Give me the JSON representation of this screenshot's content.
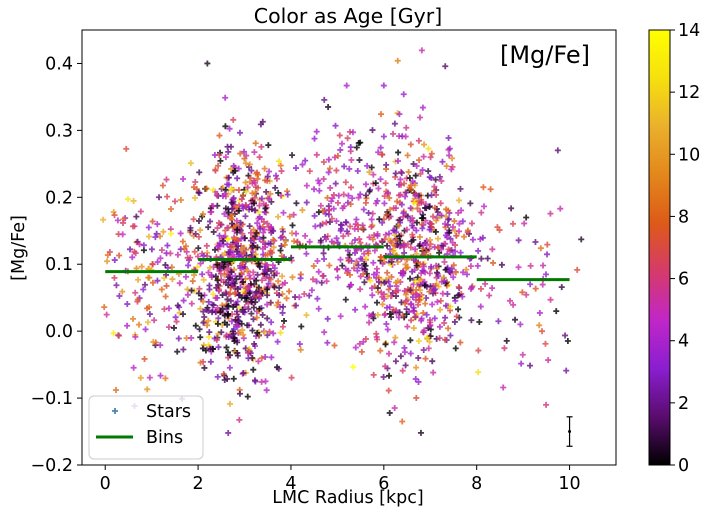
{
  "chart_data": {
    "type": "scatter",
    "title": "Color as Age [Gyr]",
    "annotation": "[Mg/Fe]",
    "xlabel": "LMC Radius [kpc]",
    "ylabel": "[Mg/Fe]",
    "xlim": [
      -0.5,
      11.0
    ],
    "ylim": [
      -0.2,
      0.45
    ],
    "xticks": [
      0,
      2,
      4,
      6,
      8,
      10
    ],
    "yticks": [
      -0.2,
      -0.1,
      0.0,
      0.1,
      0.2,
      0.3,
      0.4
    ],
    "xtick_labels": [
      "0",
      "2",
      "4",
      "6",
      "8",
      "10"
    ],
    "ytick_labels": [
      "−0.2",
      "−0.1",
      "0.0",
      "0.1",
      "0.2",
      "0.3",
      "0.4"
    ],
    "legend": {
      "position": "lower-left",
      "entries": [
        {
          "label": "Stars",
          "marker": "plus",
          "color": "#4a86b8"
        },
        {
          "label": "Bins",
          "marker": "line",
          "color": "#007a00"
        }
      ]
    },
    "colorbar": {
      "label_min": 0,
      "label_max": 14,
      "ticks": [
        0,
        2,
        4,
        6,
        8,
        10,
        12,
        14
      ],
      "tick_labels": [
        "0",
        "2",
        "4",
        "6",
        "8",
        "10",
        "12",
        "14"
      ],
      "colormap": "gnuplot",
      "colors": [
        "#000000",
        "#5a0c6e",
        "#8a1ed0",
        "#c126c8",
        "#d63a6a",
        "#dd5a18",
        "#e3871c",
        "#eab02c",
        "#f6e00e",
        "#ffff00"
      ]
    },
    "series": [
      {
        "name": "Bins",
        "kind": "step",
        "segments": [
          {
            "x0": 0.0,
            "x1": 2.0,
            "y": 0.089
          },
          {
            "x0": 2.0,
            "x1": 4.0,
            "y": 0.107
          },
          {
            "x0": 4.0,
            "x1": 6.0,
            "y": 0.126
          },
          {
            "x0": 6.0,
            "x1": 8.0,
            "y": 0.111
          },
          {
            "x0": 8.0,
            "x1": 10.0,
            "y": 0.077
          }
        ]
      },
      {
        "name": "Stars",
        "kind": "scatter",
        "clusters": [
          {
            "x_center": 0.8,
            "x_spread": 0.55,
            "y_center": 0.085,
            "y_spread": 0.075,
            "count": 130,
            "age_center": 6.5,
            "age_spread": 3.0
          },
          {
            "x_center": 2.9,
            "x_spread": 0.55,
            "y_center": 0.115,
            "y_spread": 0.085,
            "count": 700,
            "age_center": 5.0,
            "age_spread": 3.5
          },
          {
            "x_center": 2.8,
            "x_spread": 0.5,
            "y_center": 0.035,
            "y_spread": 0.05,
            "count": 130,
            "age_center": 1.0,
            "age_spread": 1.0
          },
          {
            "x_center": 5.0,
            "x_spread": 0.5,
            "y_center": 0.15,
            "y_spread": 0.07,
            "count": 180,
            "age_center": 4.0,
            "age_spread": 2.0
          },
          {
            "x_center": 6.6,
            "x_spread": 0.6,
            "y_center": 0.115,
            "y_spread": 0.085,
            "count": 650,
            "age_center": 5.0,
            "age_spread": 3.5
          },
          {
            "x_center": 7.9,
            "x_spread": 0.4,
            "y_center": 0.1,
            "y_spread": 0.06,
            "count": 40,
            "age_center": 4.5,
            "age_spread": 2.0
          },
          {
            "x_center": 9.3,
            "x_spread": 0.55,
            "y_center": 0.08,
            "y_spread": 0.07,
            "count": 45,
            "age_center": 4.5,
            "age_spread": 2.5
          }
        ],
        "points": [
          {
            "x": 2.2,
            "y": 0.4,
            "age": 0.5
          },
          {
            "x": 6.3,
            "y": 0.404,
            "age": 9.0
          },
          {
            "x": 5.2,
            "y": 0.367,
            "age": 4.0
          },
          {
            "x": 6.0,
            "y": 0.367,
            "age": 3.5
          },
          {
            "x": 4.8,
            "y": 0.335,
            "age": 0.5
          },
          {
            "x": 6.8,
            "y": -0.152,
            "age": 0.5
          },
          {
            "x": 8.3,
            "y": 0.212,
            "age": 7.5
          },
          {
            "x": 9.8,
            "y": 0.183,
            "age": 5.0
          }
        ]
      }
    ],
    "error_bar": {
      "x": 10.0,
      "y": -0.15,
      "yerr": 0.022
    }
  }
}
